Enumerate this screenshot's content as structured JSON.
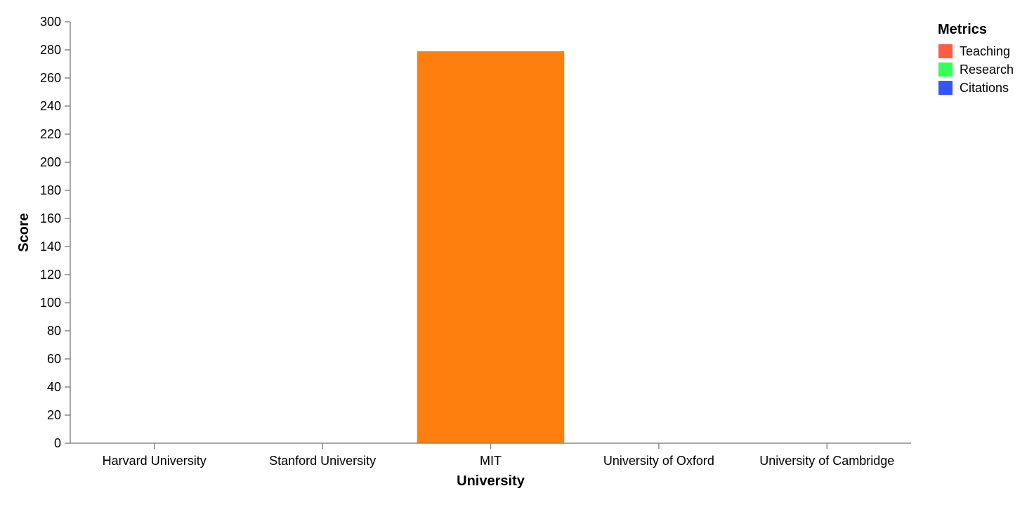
{
  "chart_data": {
    "type": "bar",
    "xlabel": "University",
    "ylabel": "Score",
    "ylim": [
      0,
      300
    ],
    "yticks": [
      0,
      20,
      40,
      60,
      80,
      100,
      120,
      140,
      160,
      180,
      200,
      220,
      240,
      260,
      280,
      300
    ],
    "categories": [
      "Harvard University",
      "Stanford University",
      "MIT",
      "University of Oxford",
      "University of Cambridge"
    ],
    "bars": [
      {
        "category": "Harvard University",
        "value": 0,
        "color": "#ff7f0e"
      },
      {
        "category": "Stanford University",
        "value": 0,
        "color": "#ff7f0e"
      },
      {
        "category": "MIT",
        "value": 279,
        "color": "#ff7f0e"
      },
      {
        "category": "University of Oxford",
        "value": 0,
        "color": "#ff7f0e"
      },
      {
        "category": "University of Cambridge",
        "value": 0,
        "color": "#ff7f0e"
      }
    ],
    "grid": false,
    "legend": {
      "title": "Metrics",
      "position": "top-right",
      "items": [
        {
          "label": "Teaching",
          "color": "#ff5c40"
        },
        {
          "label": "Research",
          "color": "#33ff57"
        },
        {
          "label": "Citations",
          "color": "#3357ff"
        }
      ]
    }
  }
}
